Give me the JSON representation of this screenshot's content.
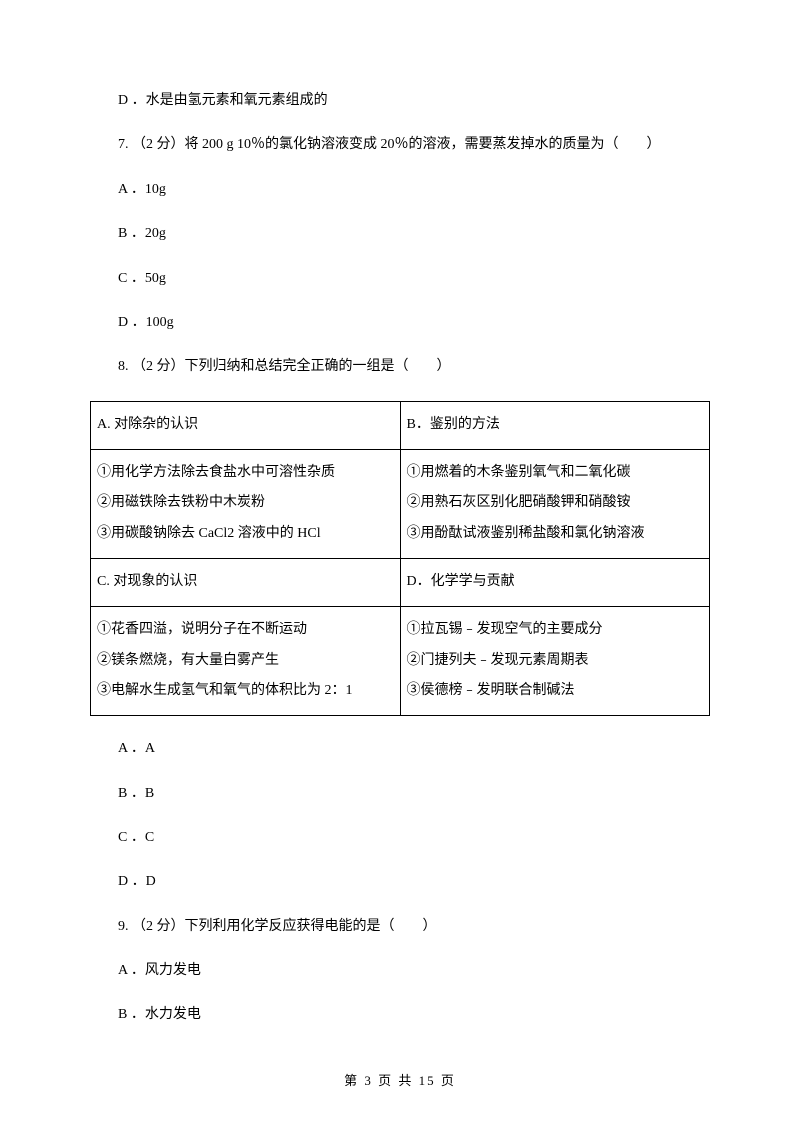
{
  "lines": {
    "optD_q6": "D ．水是由氢元素和氧元素组成的",
    "q7": "7. （2 分）将 200 g 10％的氯化钠溶液变成 20％的溶液，需要蒸发掉水的质量为（　　）",
    "q7_a": "A ．10g",
    "q7_b": "B ．20g",
    "q7_c": "C ．50g",
    "q7_d": "D ．100g",
    "q8": "8. （2 分）下列归纳和总结完全正确的一组是（　　）",
    "q8_opt_a": "A ．A",
    "q8_opt_b": "B ．B",
    "q8_opt_c": "C ．C",
    "q8_opt_d": "D ．D",
    "q9": "9. （2 分）下列利用化学反应获得电能的是（　　）",
    "q9_a": "A ．风力发电",
    "q9_b": "B ．水力发电"
  },
  "table": {
    "rows": [
      {
        "left_header": "A. 对除杂的认识",
        "right_header": "B．鉴别的方法",
        "left_items": [
          "①用化学方法除去食盐水中可溶性杂质",
          "②用磁铁除去铁粉中木炭粉",
          "③用碳酸钠除去 CaCl2 溶液中的 HCl"
        ],
        "right_items": [
          "①用燃着的木条鉴别氧气和二氧化碳",
          "②用熟石灰区别化肥硝酸钾和硝酸铵",
          "③用酚酞试液鉴别稀盐酸和氯化钠溶液"
        ]
      },
      {
        "left_header": "C. 对现象的认识",
        "right_header": "D．化学学与贡献",
        "left_items": [
          "①花香四溢，说明分子在不断运动",
          "②镁条燃烧，有大量白雾产生",
          "③电解水生成氢气和氧气的体积比为 2：1"
        ],
        "right_items": [
          "①拉瓦锡﹣发现空气的主要成分",
          "②门捷列夫﹣发现元素周期表",
          "③侯德榜﹣发明联合制碱法"
        ]
      }
    ]
  },
  "footer": "第 3 页 共 15 页"
}
